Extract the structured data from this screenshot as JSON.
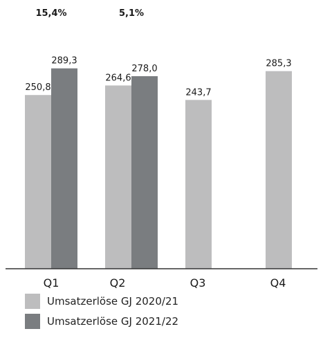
{
  "chart_data": {
    "type": "bar",
    "categories": [
      "Q1",
      "Q2",
      "Q3",
      "Q4"
    ],
    "series": [
      {
        "name": "Umsatzerlöse GJ 2020/21",
        "values": [
          250.8,
          264.6,
          243.7,
          285.3
        ],
        "labels": [
          "250,8",
          "264,6",
          "243,7",
          "285,3"
        ],
        "color": "#bdbdbe"
      },
      {
        "name": "Umsatzerlöse GJ 2021/22",
        "values": [
          289.3,
          278.0,
          null,
          null
        ],
        "labels": [
          "289,3",
          "278,0",
          "",
          ""
        ],
        "color": "#7a7d80"
      }
    ],
    "growth_labels": [
      "15,4%",
      "5,1%",
      "",
      ""
    ],
    "ylim": [
      0,
      300
    ],
    "title": "",
    "xlabel": "",
    "ylabel": "",
    "legend_position": "bottom-left",
    "grid": false
  }
}
